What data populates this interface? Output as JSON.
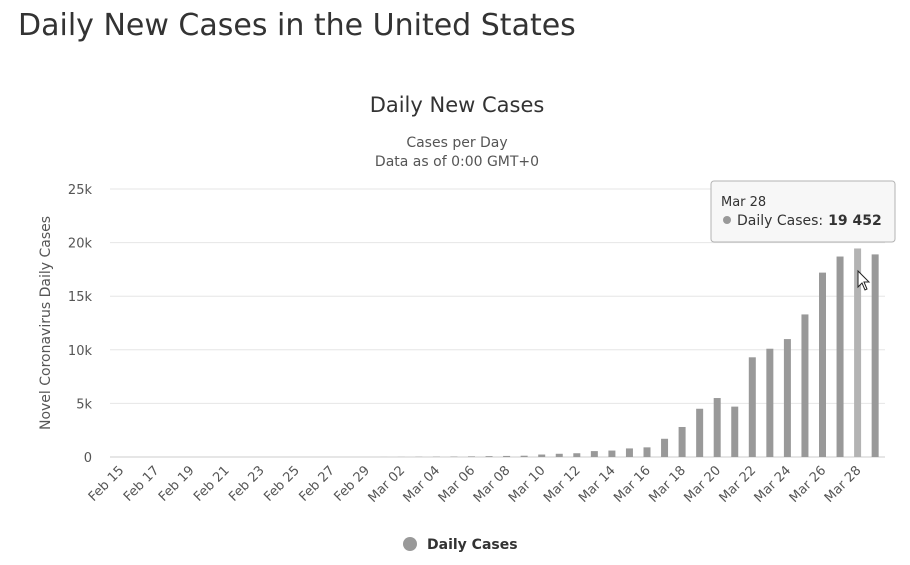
{
  "page": {
    "heading": "Daily New Cases in the United States"
  },
  "chart_data": {
    "type": "bar",
    "title": "Daily New Cases",
    "subtitle": "Cases per Day",
    "subtitle2": "Data as of 0:00 GMT+0",
    "xlabel": "",
    "ylabel": "Novel Coronavirus Daily Cases",
    "ylim": [
      0,
      25000
    ],
    "yticks": [
      0,
      5000,
      10000,
      15000,
      20000,
      25000
    ],
    "ytick_labels": [
      "0",
      "5k",
      "10k",
      "15k",
      "20k",
      "25k"
    ],
    "categories": [
      "Feb 15",
      "Feb 16",
      "Feb 17",
      "Feb 18",
      "Feb 19",
      "Feb 20",
      "Feb 21",
      "Feb 22",
      "Feb 23",
      "Feb 24",
      "Feb 25",
      "Feb 26",
      "Feb 27",
      "Feb 28",
      "Feb 29",
      "Mar 01",
      "Mar 02",
      "Mar 03",
      "Mar 04",
      "Mar 05",
      "Mar 06",
      "Mar 07",
      "Mar 08",
      "Mar 09",
      "Mar 10",
      "Mar 11",
      "Mar 12",
      "Mar 13",
      "Mar 14",
      "Mar 15",
      "Mar 16",
      "Mar 17",
      "Mar 18",
      "Mar 19",
      "Mar 20",
      "Mar 21",
      "Mar 22",
      "Mar 23",
      "Mar 24",
      "Mar 25",
      "Mar 26",
      "Mar 27",
      "Mar 28",
      "Mar 29"
    ],
    "xtick_labels": [
      "Feb 15",
      "Feb 17",
      "Feb 19",
      "Feb 21",
      "Feb 23",
      "Feb 25",
      "Feb 27",
      "Feb 29",
      "Mar 02",
      "Mar 04",
      "Mar 06",
      "Mar 08",
      "Mar 10",
      "Mar 12",
      "Mar 14",
      "Mar 16",
      "Mar 18",
      "Mar 20",
      "Mar 22",
      "Mar 24",
      "Mar 26",
      "Mar 28"
    ],
    "series": [
      {
        "name": "Daily Cases",
        "color": "#999999",
        "values": [
          0,
          0,
          0,
          0,
          0,
          0,
          0,
          0,
          0,
          0,
          0,
          0,
          0,
          0,
          0,
          5,
          10,
          20,
          30,
          40,
          60,
          80,
          100,
          120,
          230,
          300,
          350,
          550,
          600,
          800,
          900,
          1700,
          2800,
          4500,
          5500,
          4700,
          9300,
          10100,
          11000,
          13300,
          17200,
          18700,
          19452,
          18900
        ]
      }
    ],
    "legend": {
      "label": "Daily Cases",
      "position": "bottom-center"
    },
    "tooltip": {
      "date": "Mar 28",
      "series_label": "Daily Cases:",
      "value_text": "19 452",
      "category": "Mar 28"
    },
    "highlight_color": "#b3b3b3",
    "grid": true
  }
}
